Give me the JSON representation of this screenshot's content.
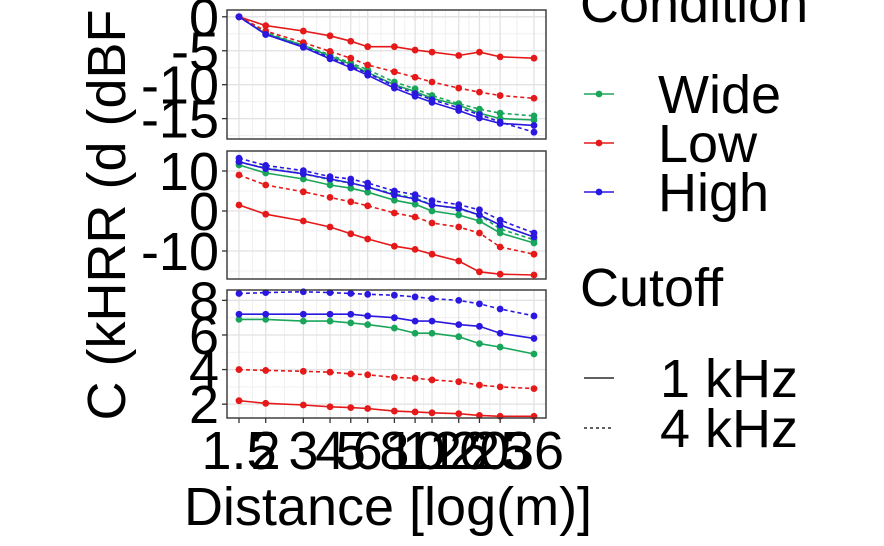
{
  "chart_data": {
    "type": "line",
    "xlabel": "Distance [log(m)]",
    "ylabel": "C (kHRR (d (dBF",
    "x": [
      1.5,
      2,
      3,
      4,
      5,
      6,
      8,
      10,
      12,
      16,
      20,
      25,
      36
    ],
    "x_tick_labels": [
      "1.5",
      "2",
      "3",
      "4",
      "5",
      "6",
      "8",
      "10",
      "12",
      "16",
      "20",
      "25",
      "36"
    ],
    "legend": {
      "placement": "right",
      "condition_title": "Condition",
      "condition_items": [
        "Wide",
        "Low",
        "High"
      ],
      "cutoff_title": "Cutoff",
      "cutoff_items": [
        "1 kHz",
        "4 kHz"
      ]
    },
    "colors": {
      "Wide": "#1aa65a",
      "Low": "#e51919",
      "High": "#2b18e0"
    },
    "panels": [
      {
        "ylim": [
          -18,
          1
        ],
        "y_ticks": [
          0,
          -5,
          -10,
          -15
        ],
        "y_tick_labels": [
          "0",
          "-5",
          "-10",
          "-15"
        ],
        "series": [
          {
            "name": "Wide",
            "cutoff": "1 kHz",
            "values": [
              0,
              -2.5,
              -4.2,
              -5.8,
              -7,
              -8.2,
              -10,
              -11,
              -12,
              -13,
              -14.2,
              -15,
              -15.2
            ]
          },
          {
            "name": "Wide",
            "cutoff": "4 kHz",
            "values": [
              0,
              -2.3,
              -4.2,
              -5.6,
              -6.8,
              -7.8,
              -9.6,
              -10.6,
              -11.6,
              -12.8,
              -13.6,
              -14.2,
              -14.6
            ]
          },
          {
            "name": "Low",
            "cutoff": "1 kHz",
            "values": [
              0,
              -1.3,
              -2.1,
              -2.8,
              -3.6,
              -4.4,
              -4.4,
              -4.9,
              -5.2,
              -5.7,
              -5.2,
              -5.9,
              -6.1
            ]
          },
          {
            "name": "Low",
            "cutoff": "4 kHz",
            "values": [
              0,
              -2.1,
              -3.8,
              -5.1,
              -6.1,
              -7.1,
              -8.1,
              -8.9,
              -9.6,
              -10.5,
              -11.1,
              -11.6,
              -12
            ]
          },
          {
            "name": "High",
            "cutoff": "1 kHz",
            "values": [
              0,
              -2.6,
              -4.5,
              -6.2,
              -7.5,
              -8.6,
              -10.5,
              -11.7,
              -12.6,
              -13.8,
              -14.9,
              -15.7,
              -16
            ]
          },
          {
            "name": "High",
            "cutoff": "4 kHz",
            "values": [
              0,
              -2.6,
              -4.4,
              -6,
              -7.3,
              -8.3,
              -10.2,
              -11.3,
              -12.2,
              -13.4,
              -14.4,
              -15.5,
              -17
            ]
          }
        ]
      },
      {
        "ylim": [
          -17,
          15
        ],
        "y_ticks": [
          10,
          0,
          -10
        ],
        "y_tick_labels": [
          "10",
          "0",
          "-10"
        ],
        "series": [
          {
            "name": "Wide",
            "cutoff": "1 kHz",
            "values": [
              11.5,
              9.5,
              8,
              6.5,
              5.7,
              4.7,
              2.7,
              1.7,
              0,
              -1,
              -2.5,
              -5.5,
              -8
            ]
          },
          {
            "name": "Wide",
            "cutoff": "4 kHz",
            "values": [
              12.2,
              10.8,
              9.3,
              7.8,
              7,
              6,
              4.3,
              3.2,
              1.6,
              0.5,
              -1,
              -4.5,
              -7.2
            ]
          },
          {
            "name": "Low",
            "cutoff": "1 kHz",
            "values": [
              1.5,
              -0.8,
              -2.5,
              -4,
              -5.7,
              -7,
              -8.8,
              -9.6,
              -10.8,
              -12.5,
              -15.2,
              -15.8,
              -16
            ]
          },
          {
            "name": "Low",
            "cutoff": "4 kHz",
            "values": [
              9,
              6.5,
              4.8,
              3.4,
              2.3,
              1.3,
              -0.5,
              -1.5,
              -3,
              -4,
              -5.5,
              -9,
              -10.8
            ]
          },
          {
            "name": "High",
            "cutoff": "1 kHz",
            "values": [
              12.3,
              10.6,
              9.3,
              8,
              7,
              6,
              4,
              3,
              1.5,
              0.7,
              -1,
              -3.5,
              -6.5
            ]
          },
          {
            "name": "High",
            "cutoff": "4 kHz",
            "values": [
              13.2,
              11.4,
              10.1,
              8.6,
              8,
              7,
              5,
              4.1,
              2.6,
              1.6,
              0.3,
              -2.3,
              -5.5
            ]
          }
        ]
      },
      {
        "ylim": [
          1.2,
          8.6
        ],
        "y_ticks": [
          8,
          6,
          4,
          2
        ],
        "y_tick_labels": [
          "8",
          "6",
          "4",
          "2"
        ],
        "series": [
          {
            "name": "Wide",
            "cutoff": "1 kHz",
            "values": [
              6.9,
              6.9,
              6.8,
              6.8,
              6.7,
              6.6,
              6.4,
              6.1,
              6.1,
              5.9,
              5.5,
              5.3,
              4.9
            ]
          },
          {
            "name": "Low",
            "cutoff": "1 kHz",
            "values": [
              2.2,
              2.05,
              1.95,
              1.85,
              1.8,
              1.75,
              1.6,
              1.55,
              1.5,
              1.45,
              1.35,
              1.3,
              1.3
            ]
          },
          {
            "name": "Low",
            "cutoff": "4 kHz",
            "values": [
              4,
              3.95,
              3.9,
              3.85,
              3.75,
              3.7,
              3.55,
              3.5,
              3.4,
              3.3,
              3.1,
              3,
              2.9
            ]
          },
          {
            "name": "High",
            "cutoff": "1 kHz",
            "values": [
              7.2,
              7.2,
              7.2,
              7.2,
              7.2,
              7.1,
              7,
              6.8,
              6.8,
              6.6,
              6.5,
              6.1,
              5.8
            ]
          },
          {
            "name": "High",
            "cutoff": "4 kHz",
            "values": [
              8.4,
              8.45,
              8.5,
              8.45,
              8.4,
              8.35,
              8.3,
              8.2,
              8.1,
              8,
              7.8,
              7.5,
              7.1
            ]
          }
        ]
      }
    ]
  }
}
